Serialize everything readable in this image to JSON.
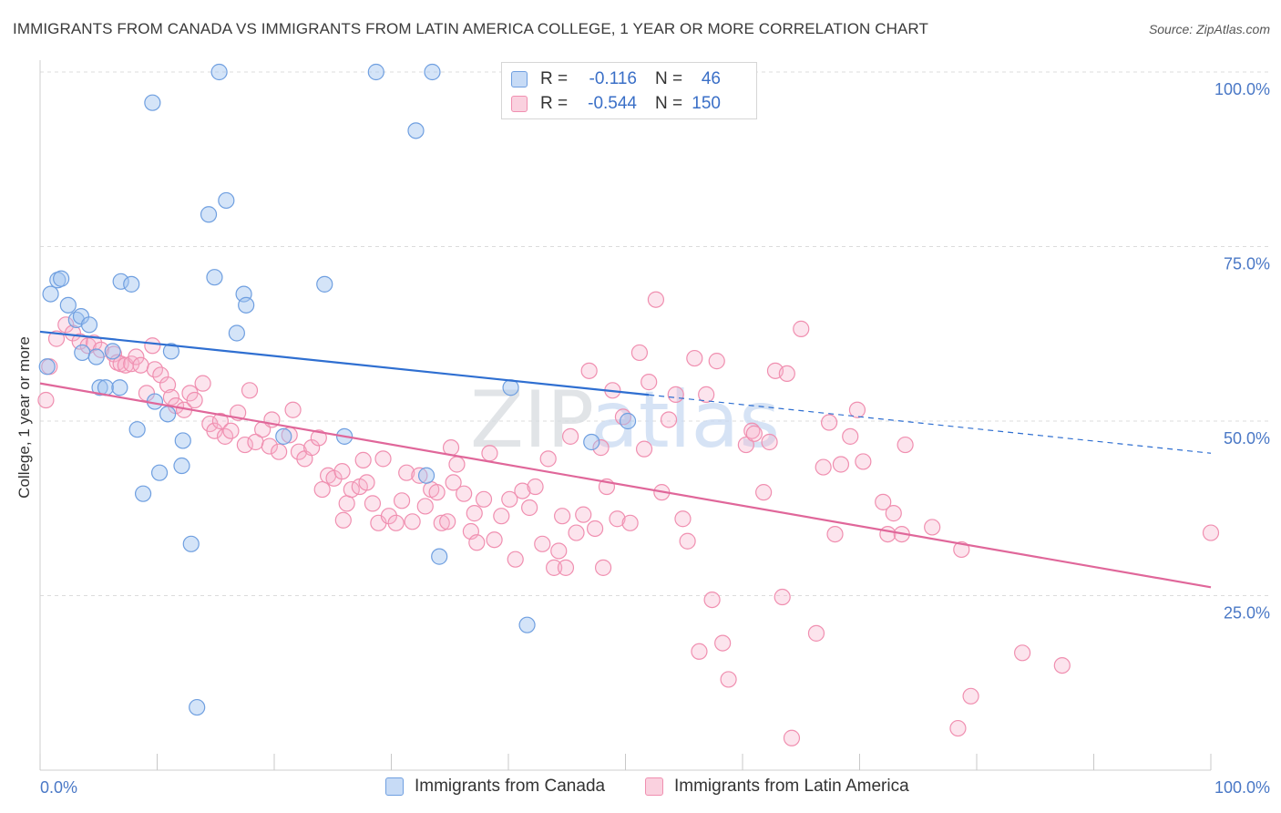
{
  "title": "IMMIGRANTS FROM CANADA VS IMMIGRANTS FROM LATIN AMERICA COLLEGE, 1 YEAR OR MORE CORRELATION CHART",
  "source": "Source: ZipAtlas.com",
  "watermark": "ZIPatlas",
  "colors": {
    "canada": "#6f9fe0",
    "canada_line": "#2f6fd1",
    "latin": "#f08fb0",
    "latin_line": "#e0679a",
    "tick": "#4a78c6"
  },
  "legend": {
    "rows": [
      {
        "r_label": "R =",
        "r_value": "-0.116",
        "n_label": "N =",
        "n_value": "46"
      },
      {
        "r_label": "R =",
        "r_value": "-0.544",
        "n_label": "N =",
        "n_value": "150"
      }
    ]
  },
  "bottom_legend": {
    "canada": "Immigrants from Canada",
    "latin": "Immigrants from Latin America"
  },
  "chart_data": {
    "type": "scatter",
    "ylabel": "College, 1 year or more",
    "xlabel": "",
    "xlim": [
      0,
      100
    ],
    "ylim": [
      0,
      100
    ],
    "x_ticks": [
      {
        "value": 0,
        "label": "0.0%"
      },
      {
        "value": 100,
        "label": "100.0%"
      }
    ],
    "y_ticks": [
      {
        "value": 25,
        "label": "25.0%"
      },
      {
        "value": 50,
        "label": "50.0%"
      },
      {
        "value": 75,
        "label": "75.0%"
      },
      {
        "value": 100,
        "label": "100.0%"
      }
    ],
    "grid": true,
    "series": [
      {
        "name": "Immigrants from Canada",
        "color_key": "canada",
        "points": [
          [
            0.6,
            57.8
          ],
          [
            0.9,
            68.2
          ],
          [
            1.5,
            70.2
          ],
          [
            1.8,
            70.4
          ],
          [
            2.4,
            66.6
          ],
          [
            3.1,
            64.5
          ],
          [
            3.5,
            65.0
          ],
          [
            3.6,
            59.8
          ],
          [
            4.2,
            63.8
          ],
          [
            4.8,
            59.2
          ],
          [
            5.1,
            54.8
          ],
          [
            5.6,
            54.8
          ],
          [
            6.2,
            60.0
          ],
          [
            6.8,
            54.8
          ],
          [
            6.9,
            70.0
          ],
          [
            7.8,
            69.6
          ],
          [
            8.3,
            48.8
          ],
          [
            8.8,
            39.6
          ],
          [
            9.6,
            95.6
          ],
          [
            9.8,
            52.8
          ],
          [
            10.2,
            42.6
          ],
          [
            10.9,
            51.0
          ],
          [
            11.2,
            60.0
          ],
          [
            12.1,
            43.6
          ],
          [
            12.2,
            47.2
          ],
          [
            12.9,
            32.4
          ],
          [
            13.4,
            9.0
          ],
          [
            14.4,
            79.6
          ],
          [
            14.9,
            70.6
          ],
          [
            15.3,
            100.0
          ],
          [
            15.9,
            81.6
          ],
          [
            16.8,
            62.6
          ],
          [
            17.4,
            68.2
          ],
          [
            17.6,
            66.6
          ],
          [
            20.8,
            47.8
          ],
          [
            24.3,
            69.6
          ],
          [
            26.0,
            47.8
          ],
          [
            28.7,
            100.0
          ],
          [
            32.1,
            91.6
          ],
          [
            33.5,
            100.0
          ],
          [
            33.0,
            42.2
          ],
          [
            34.1,
            30.6
          ],
          [
            40.2,
            54.8
          ],
          [
            41.6,
            20.8
          ],
          [
            47.1,
            47.0
          ],
          [
            50.2,
            50.0
          ]
        ]
      },
      {
        "name": "Immigrants from Latin America",
        "color_key": "latin",
        "points": [
          [
            0.5,
            53.0
          ],
          [
            0.8,
            57.8
          ],
          [
            1.4,
            61.8
          ],
          [
            2.2,
            63.8
          ],
          [
            2.8,
            62.6
          ],
          [
            3.4,
            61.4
          ],
          [
            4.1,
            60.8
          ],
          [
            4.6,
            61.2
          ],
          [
            5.2,
            60.2
          ],
          [
            6.3,
            59.6
          ],
          [
            6.6,
            58.4
          ],
          [
            6.9,
            58.2
          ],
          [
            7.3,
            58.0
          ],
          [
            7.8,
            58.2
          ],
          [
            8.2,
            59.2
          ],
          [
            8.6,
            58.0
          ],
          [
            9.1,
            54.0
          ],
          [
            9.8,
            57.4
          ],
          [
            10.3,
            56.6
          ],
          [
            10.9,
            55.2
          ],
          [
            11.2,
            53.4
          ],
          [
            11.6,
            52.2
          ],
          [
            12.3,
            51.6
          ],
          [
            12.8,
            54.0
          ],
          [
            13.2,
            53.0
          ],
          [
            13.9,
            55.4
          ],
          [
            14.5,
            49.6
          ],
          [
            14.9,
            48.6
          ],
          [
            15.4,
            50.0
          ],
          [
            15.8,
            47.8
          ],
          [
            16.3,
            48.6
          ],
          [
            16.9,
            51.2
          ],
          [
            17.5,
            46.6
          ],
          [
            17.9,
            54.4
          ],
          [
            18.4,
            47.0
          ],
          [
            19.0,
            48.8
          ],
          [
            19.6,
            46.4
          ],
          [
            19.8,
            50.2
          ],
          [
            20.4,
            45.6
          ],
          [
            21.3,
            48.0
          ],
          [
            21.6,
            51.6
          ],
          [
            22.1,
            45.6
          ],
          [
            22.6,
            44.6
          ],
          [
            23.2,
            46.2
          ],
          [
            23.8,
            47.6
          ],
          [
            24.1,
            40.2
          ],
          [
            24.6,
            42.2
          ],
          [
            25.1,
            41.8
          ],
          [
            25.8,
            42.8
          ],
          [
            26.2,
            38.2
          ],
          [
            26.6,
            40.2
          ],
          [
            27.3,
            40.6
          ],
          [
            27.9,
            41.2
          ],
          [
            28.4,
            38.2
          ],
          [
            28.9,
            35.4
          ],
          [
            29.3,
            44.6
          ],
          [
            29.8,
            36.4
          ],
          [
            30.4,
            35.4
          ],
          [
            30.9,
            38.6
          ],
          [
            31.3,
            42.6
          ],
          [
            31.8,
            35.6
          ],
          [
            32.4,
            42.2
          ],
          [
            32.9,
            37.8
          ],
          [
            33.4,
            40.2
          ],
          [
            33.9,
            39.8
          ],
          [
            34.3,
            35.4
          ],
          [
            34.8,
            35.6
          ],
          [
            35.3,
            41.2
          ],
          [
            35.6,
            43.8
          ],
          [
            36.2,
            39.6
          ],
          [
            36.8,
            34.2
          ],
          [
            37.3,
            32.6
          ],
          [
            37.9,
            38.8
          ],
          [
            38.4,
            45.4
          ],
          [
            38.8,
            33.0
          ],
          [
            39.4,
            36.4
          ],
          [
            40.1,
            38.8
          ],
          [
            40.6,
            30.2
          ],
          [
            41.2,
            40.0
          ],
          [
            41.8,
            37.6
          ],
          [
            42.3,
            40.6
          ],
          [
            42.9,
            32.4
          ],
          [
            43.4,
            44.6
          ],
          [
            43.9,
            29.0
          ],
          [
            44.3,
            31.4
          ],
          [
            44.9,
            29.0
          ],
          [
            45.3,
            47.8
          ],
          [
            45.8,
            34.0
          ],
          [
            46.4,
            36.6
          ],
          [
            46.9,
            57.2
          ],
          [
            47.4,
            34.6
          ],
          [
            47.9,
            46.2
          ],
          [
            48.4,
            40.6
          ],
          [
            48.9,
            54.4
          ],
          [
            49.3,
            36.0
          ],
          [
            49.8,
            50.6
          ],
          [
            50.4,
            35.4
          ],
          [
            51.2,
            59.8
          ],
          [
            51.6,
            46.0
          ],
          [
            52.0,
            55.6
          ],
          [
            52.6,
            67.4
          ],
          [
            53.1,
            39.8
          ],
          [
            53.7,
            50.2
          ],
          [
            54.3,
            53.8
          ],
          [
            54.9,
            36.0
          ],
          [
            55.3,
            32.8
          ],
          [
            55.9,
            59.0
          ],
          [
            56.3,
            17.0
          ],
          [
            56.9,
            53.8
          ],
          [
            57.4,
            24.4
          ],
          [
            57.8,
            58.6
          ],
          [
            58.3,
            18.2
          ],
          [
            58.8,
            13.0
          ],
          [
            60.3,
            46.6
          ],
          [
            60.8,
            48.6
          ],
          [
            61.0,
            48.2
          ],
          [
            61.8,
            39.8
          ],
          [
            62.3,
            47.0
          ],
          [
            62.8,
            57.2
          ],
          [
            63.4,
            24.8
          ],
          [
            63.8,
            56.8
          ],
          [
            64.2,
            4.6
          ],
          [
            65.0,
            63.2
          ],
          [
            66.3,
            19.6
          ],
          [
            66.9,
            43.4
          ],
          [
            67.4,
            49.8
          ],
          [
            67.9,
            33.8
          ],
          [
            68.4,
            43.8
          ],
          [
            69.2,
            47.8
          ],
          [
            69.8,
            51.6
          ],
          [
            70.3,
            44.2
          ],
          [
            72.0,
            38.4
          ],
          [
            72.4,
            33.8
          ],
          [
            72.9,
            36.8
          ],
          [
            73.6,
            33.8
          ],
          [
            73.9,
            46.6
          ],
          [
            76.2,
            34.8
          ],
          [
            78.4,
            6.0
          ],
          [
            78.7,
            31.6
          ],
          [
            79.5,
            10.6
          ],
          [
            83.9,
            16.8
          ],
          [
            87.3,
            15.0
          ],
          [
            100.0,
            34.0
          ],
          [
            25.9,
            35.8
          ],
          [
            27.6,
            44.4
          ],
          [
            35.1,
            46.2
          ],
          [
            37.1,
            36.8
          ],
          [
            44.6,
            36.4
          ],
          [
            48.1,
            29.0
          ],
          [
            9.6,
            60.8
          ]
        ]
      }
    ],
    "trendlines": [
      {
        "series": "Immigrants from Canada",
        "x_start": 0,
        "y_start": 62.8,
        "x_solid_end": 52,
        "x_end": 100,
        "y_end": 45.4
      },
      {
        "series": "Immigrants from Latin America",
        "x_start": 0,
        "y_start": 55.4,
        "x_end": 100,
        "y_end": 26.2
      }
    ]
  }
}
